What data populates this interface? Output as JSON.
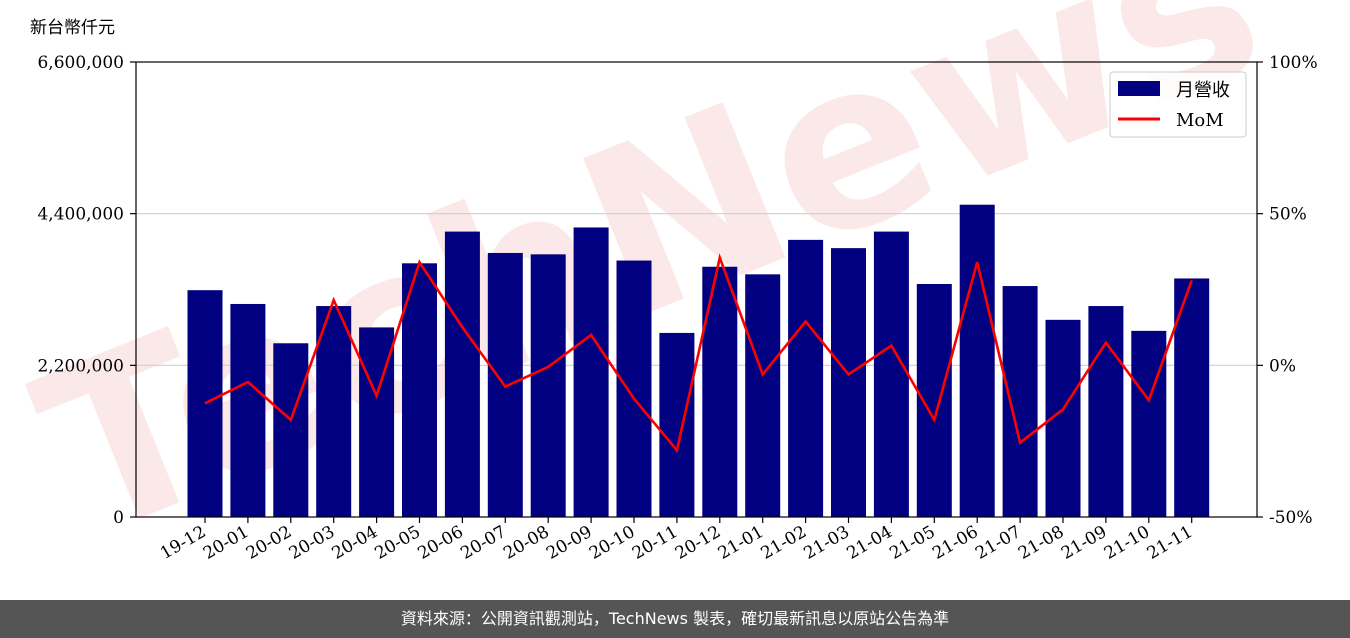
{
  "chart_data": {
    "type": "bar",
    "y_unit_label": "新台幣仟元",
    "categories": [
      "19-12",
      "20-01",
      "20-02",
      "20-03",
      "20-04",
      "20-05",
      "20-06",
      "20-07",
      "20-08",
      "20-09",
      "20-10",
      "20-11",
      "20-12",
      "21-01",
      "21-02",
      "21-03",
      "21-04",
      "21-05",
      "21-06",
      "21-07",
      "21-08",
      "21-09",
      "21-10",
      "21-11"
    ],
    "series": [
      {
        "name": "月營收",
        "type": "bar",
        "axis": "left",
        "color": "#000080",
        "values": [
          3290000,
          3090000,
          2520000,
          3060000,
          2750000,
          3680000,
          4140000,
          3830000,
          3810000,
          4200000,
          3720000,
          2670000,
          3630000,
          3520000,
          4020000,
          3900000,
          4140000,
          3380000,
          4530000,
          3350000,
          2860000,
          3060000,
          2700000,
          3460000
        ]
      },
      {
        "name": "MoM",
        "type": "line",
        "axis": "right",
        "color": "#ff0000",
        "values": [
          -12.5,
          -5.5,
          -18.0,
          21.5,
          -10.0,
          34.0,
          12.5,
          -7.0,
          -0.5,
          10.0,
          -11.0,
          -28.0,
          35.5,
          -3.0,
          14.5,
          -3.0,
          6.5,
          -18.0,
          34.0,
          -25.5,
          -14.5,
          7.5,
          -11.5,
          28.0
        ]
      }
    ],
    "y_left": {
      "ylim": [
        0,
        6600000
      ],
      "ticks": [
        "0",
        "2,200,000",
        "4,400,000",
        "6,600,000"
      ],
      "tick_values": [
        0,
        2200000,
        4400000,
        6600000
      ]
    },
    "y_right": {
      "ylim": [
        -50,
        100
      ],
      "ticks": [
        "-50%",
        "0%",
        "50%",
        "100%"
      ],
      "tick_values": [
        -50,
        0,
        50,
        100
      ]
    },
    "grid": "horizontal",
    "legend": "top-right"
  },
  "footer": {
    "text": "資料來源：公開資訊觀測站，TechNews 製表，確切最新訊息以原站公告為準"
  }
}
